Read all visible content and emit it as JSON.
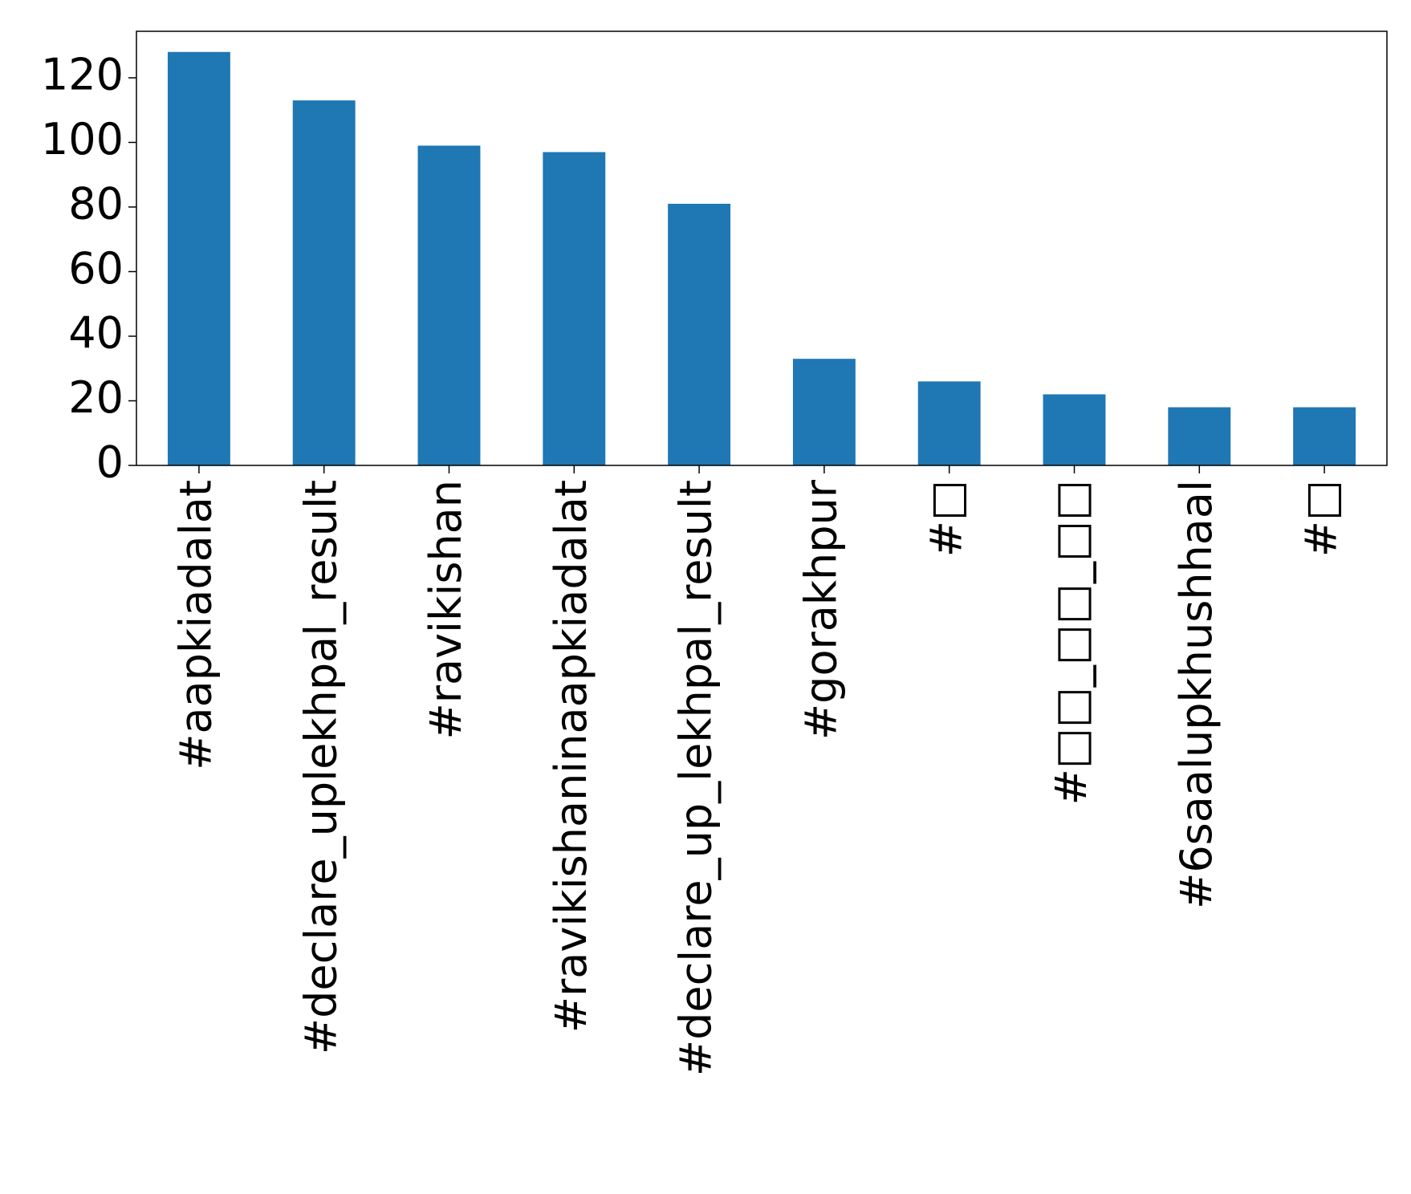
{
  "chart_data": {
    "type": "bar",
    "categories": [
      "#aapkiadalat",
      "#declare_uplekhpal_result",
      "#ravikishan",
      "#ravikishaninaapkiadalat",
      "#declare_up_lekhpal_result",
      "#gorakhpur",
      "#□",
      "#□□_□□_□□",
      "#6saalupkhushhaal",
      "#□"
    ],
    "values": [
      128,
      113,
      99,
      97,
      81,
      33,
      26,
      22,
      18,
      18
    ],
    "color": "#1f77b4",
    "ylim": [
      0,
      134.4
    ],
    "yticks": [
      0,
      20,
      40,
      60,
      80,
      100,
      120
    ],
    "grid": false
  }
}
